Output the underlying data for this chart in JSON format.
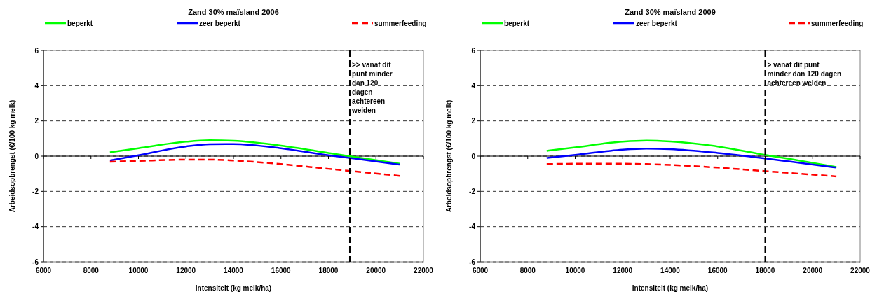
{
  "chart_data": [
    {
      "type": "line",
      "title": "Zand 30% maïsland 2006",
      "xlabel": "Intensiteit (kg melk/ha)",
      "ylabel": "Arbeidsopbrengst (€/100 kg melk)",
      "x": [
        8800,
        10000,
        12000,
        13000,
        14000,
        16000,
        18000,
        19000,
        21000
      ],
      "series": [
        {
          "name": "beperkt",
          "color": "#00ff00",
          "values": [
            0.22,
            0.45,
            0.82,
            0.9,
            0.87,
            0.6,
            0.18,
            -0.03,
            -0.43
          ]
        },
        {
          "name": "zeer beperkt",
          "color": "#0000ff",
          "values": [
            -0.25,
            0.05,
            0.55,
            0.68,
            0.69,
            0.45,
            0.05,
            -0.12,
            -0.48
          ]
        },
        {
          "name": "summerfeeding",
          "color": "#ff0000",
          "line_style": "dashed",
          "values": [
            -0.32,
            -0.27,
            -0.2,
            -0.2,
            -0.25,
            -0.45,
            -0.72,
            -0.85,
            -1.12
          ]
        }
      ],
      "xlim": [
        6000,
        22000
      ],
      "xticks": [
        6000,
        8000,
        10000,
        12000,
        14000,
        16000,
        18000,
        20000,
        22000
      ],
      "ylim": [
        -6,
        6
      ],
      "yticks": [
        -6,
        -4,
        -2,
        0,
        2,
        4,
        6
      ],
      "grid": "y",
      "legend": "top",
      "line_style": "solid",
      "marker": "none",
      "ref_lines": [
        {
          "axis": "x",
          "value": 18900,
          "label": ">> vanaf dit punt minder dan 120 dagen achtereen weiden",
          "color": "#000000",
          "line_style": "dashed"
        }
      ]
    },
    {
      "type": "line",
      "title": "Zand 30% maïsland 2009",
      "xlabel": "Intensiteit (kg melk/ha)",
      "ylabel": "Arbeidsopbrengst (€/100 kg melk)",
      "x": [
        8800,
        10000,
        12000,
        13000,
        14000,
        16000,
        18000,
        19000,
        21000
      ],
      "series": [
        {
          "name": "beperkt",
          "color": "#00ff00",
          "values": [
            0.3,
            0.5,
            0.82,
            0.88,
            0.83,
            0.55,
            0.07,
            -0.15,
            -0.62
          ]
        },
        {
          "name": "zeer beperkt",
          "color": "#0000ff",
          "values": [
            -0.1,
            0.07,
            0.37,
            0.43,
            0.4,
            0.18,
            -0.13,
            -0.3,
            -0.65
          ]
        },
        {
          "name": "summerfeeding",
          "color": "#ff0000",
          "line_style": "dashed",
          "values": [
            -0.45,
            -0.43,
            -0.43,
            -0.45,
            -0.5,
            -0.65,
            -0.85,
            -0.95,
            -1.15
          ]
        }
      ],
      "xlim": [
        6000,
        22000
      ],
      "xticks": [
        6000,
        8000,
        10000,
        12000,
        14000,
        16000,
        18000,
        20000,
        22000
      ],
      "ylim": [
        -6,
        6
      ],
      "yticks": [
        -6,
        -4,
        -2,
        0,
        2,
        4,
        6
      ],
      "grid": "y",
      "legend": "top",
      "line_style": "solid",
      "marker": "none",
      "ref_lines": [
        {
          "axis": "x",
          "value": 18000,
          "label": "> vanaf dit punt minder dan 120 dagen achtereen weiden",
          "color": "#000000",
          "line_style": "dashed"
        }
      ]
    }
  ]
}
